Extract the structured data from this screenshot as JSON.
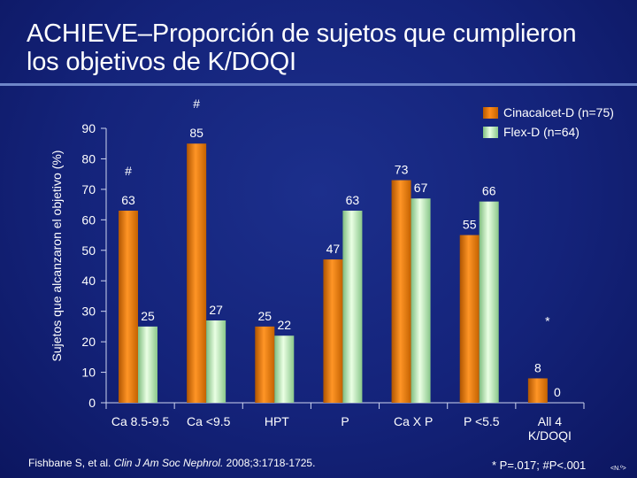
{
  "title": "ACHIEVE–Proporción de sujetos que cumplieron los objetivos de K/DOQI",
  "legend": {
    "series1": "Cinacalcet-D (n=75)",
    "series2": "Flex-D (n=64)"
  },
  "citation": {
    "authors": "Fishbane S, et al. ",
    "journal": "Clin J Am Soc Nephrol.",
    "details": " 2008;3:1718-1725."
  },
  "pnote": "* P=.017; #P<.001",
  "slide_number": "<N.º>",
  "colors": {
    "series1": "#f28a1e",
    "series2": "#bfeebb",
    "axis": "#cfd6f0"
  },
  "chart_data": {
    "type": "bar",
    "ylabel": "Sujetos que alcanzaron el objetivo (%)",
    "xlabel": "",
    "ylim": [
      0,
      90
    ],
    "yticks": [
      0,
      10,
      20,
      30,
      40,
      50,
      60,
      70,
      80,
      90
    ],
    "categories": [
      "Ca 8.5-9.5",
      "Ca <9.5",
      "HPT",
      "P",
      "Ca X P",
      "P <5.5",
      "All 4 K/DOQI"
    ],
    "category_lines": [
      [
        "Ca 8.5-9.5"
      ],
      [
        "Ca <9.5"
      ],
      [
        "HPT"
      ],
      [
        "P"
      ],
      [
        "Ca X P"
      ],
      [
        "P <5.5"
      ],
      [
        "All 4",
        "K/DOQI"
      ]
    ],
    "series": [
      {
        "name": "Cinacalcet-D (n=75)",
        "values": [
          63,
          85,
          25,
          47,
          73,
          55,
          8
        ]
      },
      {
        "name": "Flex-D (n=64)",
        "values": [
          25,
          27,
          22,
          63,
          67,
          66,
          0
        ]
      }
    ],
    "annotations": [
      {
        "text": "#",
        "category": "Ca 8.5-9.5"
      },
      {
        "text": "#",
        "category": "Ca <9.5"
      },
      {
        "text": "*",
        "category": "All 4 K/DOQI"
      }
    ]
  }
}
